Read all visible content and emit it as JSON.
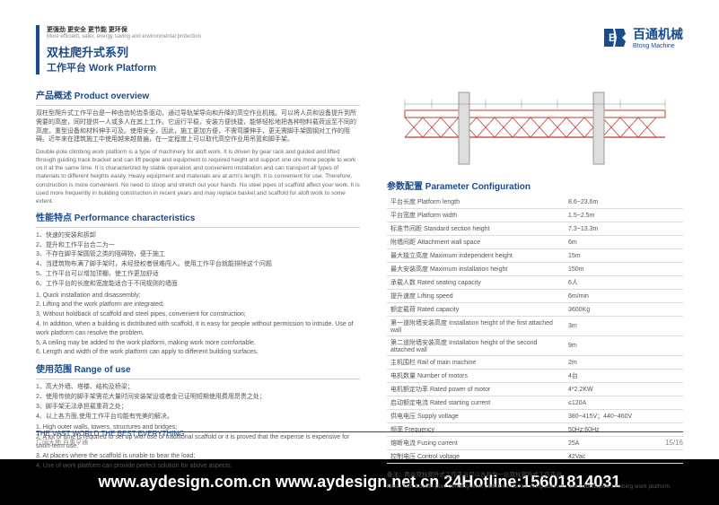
{
  "header": {
    "tagline_cn": "更强劲 更安全 更节能 更环保",
    "tagline_en": "More efficient, safer, energy saving and environmental protection",
    "title_cn": "双柱爬升式系列",
    "title_sub": "工作平台 Work Platform"
  },
  "logo": {
    "cn": "百通机械",
    "en": "Btong Machine"
  },
  "overview": {
    "title": "产品概述  Product overview",
    "para_cn": "双柱型爬升式工作平台是一种由齿轮齿条驱动，通过导轨架导向和升降的高空作业机械。可以将人员和设备提升到所需要的高度，同时提供一人或多人在其上工作。它运行平稳，安装方便快捷，能够轻松地把各种物料载荷运至不同的高度。重型设备和材料伸手可及。使用安全，因此，施工更加方便，不需弯腰伸手，更无需脚手架圆钢对工作的阻碍。近年来在建筑施工中使用越来越普遍，在一定程度上可以取代高空作业用吊篮和脚手架。",
    "para_en": "Double-pole climbing work platform is a type of machinery for aloft work. It is driven by gear rack and guided and lifted through guiding track bracket and can lift people and equipment to required height and support one ore more people to work on it at the same time. It is characterized by stable operation and convenient installation and can transport all types of materials to different heights easily. Heavy equipment and materials are at arm's length. It is convenient for use. Therefore, construction is more convenient. No need to stoop and stretch out your hands. No steel pipes of scaffold affect your work. It is used more frequently in building construction in recent years and may replace basket and scaffold for aloft work to some extent."
  },
  "performance": {
    "title": "性能特点  Performance characteristics",
    "items_cn": [
      "1、快速的安装和拆卸",
      "2、提升和工作平台合二为一",
      "3、不存在脚手架圆管之类的阻碍物，便于施工",
      "4、当建筑物布满了脚手架时，未经授权者很难闯入。使用工作平台就能排除这个问题",
      "5、工作平台可以增加顶棚，使工作更加舒适",
      "6、工作平台的长度和宽度能适合于不同规则的墙面"
    ],
    "items_en": [
      "1, Quick installation and disassembly;",
      "2, Lifting and the work platform are integrated;",
      "3, Without holdback of scaffold and steel pipes, convenient for construction;",
      "4, In addition, when a building is distributed with scaffold, it is easy for people without permission to intrude. Use of work platform can resolve the problem.",
      "5, A ceiling may be added to the work platform, making work more comfortable.",
      "6, Length and width of the work platform can apply to different building surfaces."
    ]
  },
  "range": {
    "title": "使用范围  Range of use",
    "items_cn": [
      "1、高大外墙、塔楼、结构及桥梁；",
      "2、使用传统的脚手架需花大量时间安装架设或者金已证明短期使用费用昂贵之处；",
      "3、脚手架无法承担载重荷之处；",
      "4、以上各方面,使用工作平台均能有完美的解决。"
    ],
    "items_en": [
      "1, High outer walls, towers, structures and bridges;",
      "2, A lot of time is required to set up with use of traditional scaffold or it is proved that the expense is expensive for short-term use.",
      "3, At places where the scaffold is unable to bear the load;",
      "4, Use of work platform can provide perfect solution for above aspects."
    ]
  },
  "params": {
    "title": "参数配置  Parameter Configuration",
    "rows": [
      [
        "平台长度 Platform length",
        "8.6~23.6m"
      ],
      [
        "平台宽度 Platform width",
        "1.5~2.5m"
      ],
      [
        "标准节间距 Standard section height",
        "7.3~13.3m"
      ],
      [
        "附墙间距 Attachment wall space",
        "6m"
      ],
      [
        "最大独立高度 Maximum independent height",
        "15m"
      ],
      [
        "最大安装高度 Maximum installation height",
        "150m"
      ],
      [
        "承载人数 Rated seating capacity",
        "6人"
      ],
      [
        "提升速度 Lifting speed",
        "6m/min"
      ],
      [
        "额定载荷 Rated capacity",
        "3600Kg"
      ],
      [
        "第一道附墙安装高度 Installation height of the first attached wall",
        "3m"
      ],
      [
        "第二道附墙安装高度 Installation height of the second attached wall",
        "9m"
      ],
      [
        "主机围栏 Rail of main machine",
        "2m"
      ],
      [
        "电机数量 Number of motors",
        "4台"
      ],
      [
        "电机额定功率 Rated power of motor",
        "4*2.2KW"
      ],
      [
        "启动额定电流 Rated starting current",
        "≤120A"
      ],
      [
        "供电电压 Supply voltage",
        "380~415V；440~460V"
      ],
      [
        "频率 Frequency",
        "50Hz;60Hz"
      ],
      [
        "熔断电流 Fusing current",
        "25A"
      ],
      [
        "控制电压 Control voltage",
        "42Vac"
      ]
    ],
    "note_cn": "备注：两台双柱爬升式工作平台可以合并为一台双柱爬升式工作平台。",
    "note_en": "Note: Two Double-pole climbing work platforms can be integrated into one double-pole climbing work platform."
  },
  "bottom": {
    "slogan_en": "THE VAST WORLD THE BEST EVERYTHING",
    "slogan_cn": "广阔天地 百事亨通",
    "page_num": "15/16"
  },
  "footer": {
    "text": "www.aydesign.com.cn www.aydesign.net.cn 24Hotline:15601814031"
  },
  "colors": {
    "brand": "#1a4b8c",
    "text": "#555555",
    "border": "#dddddd"
  }
}
